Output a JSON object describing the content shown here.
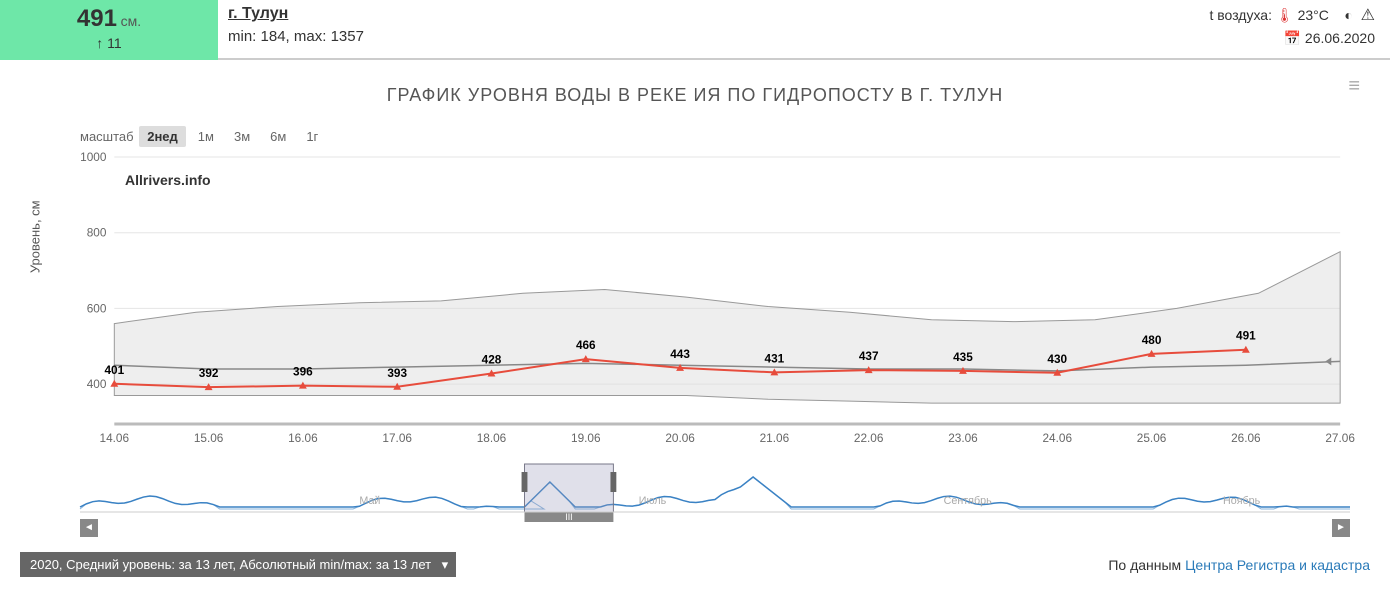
{
  "header": {
    "level_value": "491",
    "level_unit": "см.",
    "level_delta_arrow": "↑",
    "level_delta": "11",
    "city": "г. Тулун",
    "min_label": "min:",
    "min_val": "184,",
    "max_label": "max:",
    "max_val": "1357",
    "temp_label": "t воздуха:",
    "temp_val": "23°C",
    "date": "26.06.2020"
  },
  "chart": {
    "title": "ГРАФИК УРОВНЯ ВОДЫ В РЕКЕ ИЯ ПО ГИДРОПОСТУ В Г. ТУЛУН",
    "watermark": "Allrivers.info",
    "ylabel": "Уровень, см",
    "scale_label": "масштаб",
    "scale_options": [
      "2нед",
      "1м",
      "3м",
      "6м",
      "1г"
    ],
    "scale_active": 0,
    "ylim": [
      300,
      1000
    ],
    "yticks": [
      400,
      600,
      800,
      1000
    ],
    "xticks": [
      "14.06",
      "15.06",
      "16.06",
      "17.06",
      "18.06",
      "19.06",
      "20.06",
      "21.06",
      "22.06",
      "23.06",
      "24.06",
      "25.06",
      "26.06",
      "27.06"
    ],
    "series_main": {
      "color": "#e74c3c",
      "values": [
        401,
        392,
        396,
        393,
        428,
        466,
        443,
        431,
        437,
        435,
        430,
        480,
        491
      ],
      "labels": [
        "401",
        "392",
        "396",
        "393",
        "428",
        "466",
        "443",
        "431",
        "437",
        "435",
        "430",
        "480",
        "491"
      ]
    },
    "series_avg": {
      "color": "#888",
      "values": [
        450,
        440,
        440,
        445,
        450,
        455,
        450,
        445,
        440,
        440,
        435,
        445,
        450,
        460
      ]
    },
    "band_upper": [
      560,
      590,
      605,
      615,
      620,
      640,
      650,
      630,
      605,
      590,
      570,
      565,
      570,
      600,
      640,
      750
    ],
    "band_lower": [
      370,
      370,
      370,
      370,
      370,
      370,
      370,
      370,
      360,
      355,
      350,
      350,
      350,
      350,
      350,
      350
    ],
    "grid_color": "#e5e5e5",
    "bg_color": "#ffffff"
  },
  "navigator": {
    "months": [
      "Май",
      "Июль",
      "Сентябрь",
      "Ноябрь"
    ],
    "window_start": 0.35,
    "window_end": 0.42,
    "line_color": "#3b82c4"
  },
  "footer": {
    "legend": "2020, Средний уровень: за 13 лет, Абсолютный min/max: за 13 лет",
    "source_prefix": "По данным ",
    "source_link": "Центра Регистра и кадастра"
  }
}
